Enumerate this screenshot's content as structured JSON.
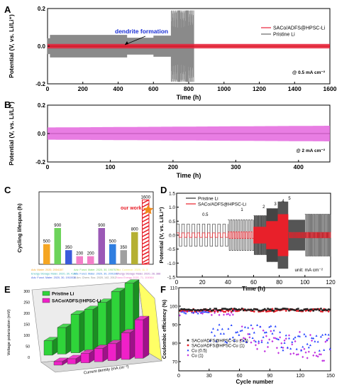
{
  "chart_data": [
    {
      "panel": "A",
      "type": "line",
      "ylabel": "Potential (V, vs. Li/Li⁺)",
      "xlabel": "Time (h)",
      "xlim": [
        0,
        1600
      ],
      "ylim": [
        -0.2,
        0.2
      ],
      "xticks": [
        0,
        200,
        400,
        600,
        800,
        1000,
        1200,
        1400,
        1600
      ],
      "yticks": [
        -0.2,
        0.0,
        0.2
      ],
      "annotation": "dendrite formation",
      "note": "@ 0.5 mA cm⁻²",
      "legend_position": "top-right",
      "series": [
        {
          "name": "SACo/ADFS@HPSC-Li",
          "color": "#e8203a",
          "x_end": 1600,
          "amplitude": 0.012
        },
        {
          "name": "Pristine Li",
          "color": "#8a8a8a",
          "x_end": 830,
          "amplitude": 0.06,
          "dendrite_at": 450,
          "spike_range": [
            700,
            830
          ]
        }
      ]
    },
    {
      "panel": "B",
      "type": "area",
      "ylabel": "Potential (V, vs. Li/Li⁺)",
      "xlabel": "Time (h)",
      "xlim": [
        0,
        450
      ],
      "ylim": [
        -0.2,
        0.2
      ],
      "xticks": [
        0,
        100,
        200,
        300,
        400
      ],
      "yticks": [
        -0.2,
        0.0,
        0.2
      ],
      "note": "@ 2 mA cm⁻²",
      "series": [
        {
          "name": "",
          "color": "#e56fe0",
          "amplitude": 0.055
        }
      ]
    },
    {
      "panel": "C",
      "type": "bar",
      "ylabel": "Cycling lifespan (h)",
      "values": [
        500,
        900,
        350,
        200,
        200,
        900,
        500,
        350,
        800,
        1600
      ],
      "value_labels": [
        "500",
        "900",
        "350",
        "200",
        "200",
        "900",
        "500",
        "350",
        "800",
        "1600"
      ],
      "colors": [
        "#f5a623",
        "#6dd35a",
        "#3b5bdb",
        "#f37fc8",
        "#f37fc8",
        "#9b59b6",
        "#2f7ee0",
        "#a0a0a0",
        "#b5b033",
        "#e8202a"
      ],
      "highlight_label": "our work",
      "refs": [
        {
          "text": "Adv. Mater. 2020, 2004157",
          "color": "#f5a623"
        },
        {
          "text": "Adv. Funct. Mater. 2020, 30, 1907579",
          "color": "#6dd35a"
        },
        {
          "text": "Nat. Commun. 2020, 11, 3",
          "color": "#f5e663"
        },
        {
          "text": "Energy Storage Mater. 2020, 30, 4120",
          "color": "#3bb3b3"
        },
        {
          "text": "Adv. Funct. Mater. 2020, 30, 2001607",
          "color": "#2f7ee0"
        },
        {
          "text": "Energy Storage Mater. 2020, 28, 388",
          "color": "#9b59b6"
        },
        {
          "text": "Adv. Funct. Mater. 2020, 30, 1910036",
          "color": "#3b5bdb"
        },
        {
          "text": "J. Am. Chem. Soc. 2020, 142, 2012",
          "color": "#888888"
        },
        {
          "text": "Nano Energy 2020, 71, 104564",
          "color": "#f37fc8"
        }
      ]
    },
    {
      "panel": "D",
      "type": "line",
      "ylabel": "Potential (V, vs. Li/Li⁺)",
      "xlabel": "Time (h)",
      "xlim": [
        0,
        120
      ],
      "ylim": [
        -1.5,
        1.5
      ],
      "xticks": [
        0,
        20,
        40,
        60,
        80,
        100,
        120
      ],
      "yticks": [
        -1.5,
        -1.0,
        -0.5,
        0.0,
        0.5,
        1.0,
        1.5
      ],
      "rate_labels": [
        {
          "text": "0.5",
          "x": 20
        },
        {
          "text": "1",
          "x": 50
        },
        {
          "text": "2",
          "x": 67
        },
        {
          "text": "3",
          "x": 76
        },
        {
          "text": "4",
          "x": 82
        },
        {
          "text": "5",
          "x": 87
        }
      ],
      "note": "unit: mA cm⁻²",
      "series": [
        {
          "name": "Pristine Li",
          "color": "#333333"
        },
        {
          "name": "SACo/ADFS@HPSC-Li",
          "color": "#e8202a"
        }
      ]
    },
    {
      "panel": "E",
      "type": "bar",
      "ylabel": "Voltage polarization (mV)",
      "xlabel": "Current density (mA cm⁻²)",
      "zticks": [
        0,
        50,
        100,
        150,
        200,
        250,
        300
      ],
      "series": [
        {
          "name": "Pristine Li",
          "color": "#2fd43a",
          "values": [
            60,
            110,
            160,
            175,
            200,
            240,
            270
          ]
        },
        {
          "name": "SACo/ADFS@HPSC-Li",
          "color": "#f020c8",
          "values": [
            15,
            22,
            40,
            55,
            70,
            110,
            160
          ]
        }
      ]
    },
    {
      "panel": "F",
      "type": "scatter",
      "ylabel": "Coulombic efficiency (%)",
      "xlabel": "Cycle number",
      "xlim": [
        0,
        150
      ],
      "ylim": [
        65,
        110
      ],
      "xticks": [
        0,
        30,
        60,
        90,
        120,
        150
      ],
      "yticks": [
        70,
        80,
        90,
        100,
        110
      ],
      "series": [
        {
          "name": "SACo/ADFS@HPSC-Cu (0.5)",
          "color": "#222222",
          "marker": "square"
        },
        {
          "name": "SACo/ADFS@HPSC-Cu (1)",
          "color": "#e8202a",
          "marker": "circle"
        },
        {
          "name": "Cu (0.5)",
          "color": "#1f3fff",
          "marker": "triangle"
        },
        {
          "name": "Cu (1)",
          "color": "#c030e0",
          "marker": "diamond"
        }
      ]
    }
  ],
  "panel_letters": [
    "A",
    "B",
    "C",
    "D",
    "E",
    "F"
  ]
}
